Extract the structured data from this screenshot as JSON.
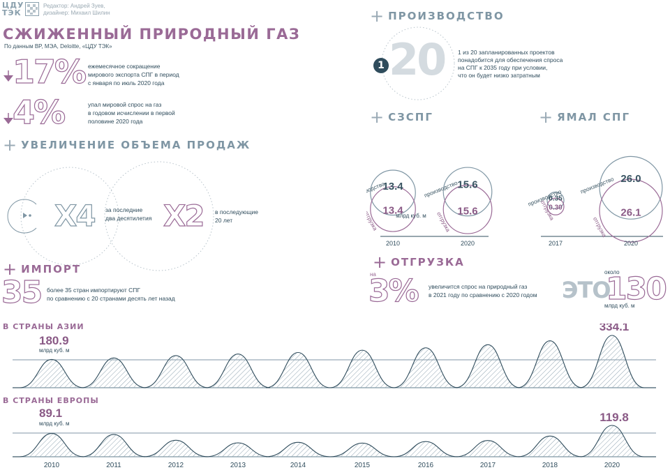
{
  "header": {
    "logo_line1": "ЦДУ",
    "logo_line2": "ТЭК",
    "credits_line1": "Редактор: Андрей Зуев,",
    "credits_line2": "дизайнер: Михаил Шилин",
    "title": "СЖИЖЕННЫЙ ПРИРОДНЫЙ ГАЗ",
    "source": "По данным BP, МЭА, Deloitte, «ЦДУ ТЭК»"
  },
  "facts": [
    {
      "value": "17%",
      "text": [
        "ежемесячное сокращение",
        "мирового экспорта СПГ в период",
        "с января по июль 2020 года"
      ]
    },
    {
      "value": "4%",
      "text": [
        "упал мировой спрос на газ",
        "в годовом исчислении в первой",
        "половине 2020 года"
      ]
    }
  ],
  "sales": {
    "heading": "УВЕЛИЧЕНИЕ ОБЪЕМА ПРОДАЖ",
    "x4": "X4",
    "x4_text": [
      "за последние",
      "два десятилетия"
    ],
    "x2": "X2",
    "x2_text": [
      "в последующие",
      "20 лет"
    ]
  },
  "import": {
    "heading": "ИМПОРТ",
    "value": "35",
    "text": [
      "более 35 стран импортируют СПГ",
      "по сравнению с 20 странами десять лет назад"
    ]
  },
  "production": {
    "heading": "ПРОИЗВОДСТВО",
    "badge": "1",
    "value": "20",
    "text": [
      "1 из 20 запланированных проектов",
      "понадобится для обеспечения спроса",
      "на СПГ к 2035 году при условии,",
      "что он будет низко затратным"
    ]
  },
  "shipment": {
    "heading": "ОТГРУЗКА",
    "prefix": "на",
    "value": "3%",
    "text": [
      "увеличится спрос на природный газ",
      "в 2021 году по сравнению с 2020 годом"
    ],
    "eto": "ЭТО",
    "about": "около",
    "big": "130",
    "unit": "млрд куб. м"
  },
  "colors": {
    "purple": "#9a6a96",
    "gray": "#7f96a4",
    "dark": "#2f4c5c"
  },
  "chart_data": [
    {
      "type": "bubble",
      "title": "СЗСПГ",
      "label_production": "производство",
      "label_shipment": "отгрузка",
      "unit": "млрд куб. м",
      "categories": [
        "2010",
        "2020"
      ],
      "series": [
        {
          "name": "производство",
          "values": [
            13.4,
            15.6
          ]
        },
        {
          "name": "отгрузка",
          "values": [
            13.4,
            15.6
          ]
        }
      ]
    },
    {
      "type": "bubble",
      "title": "ЯМАЛ СПГ",
      "label_production": "производство",
      "label_shipment": "отгрузка",
      "categories": [
        "2017",
        "2020"
      ],
      "series": [
        {
          "name": "производство",
          "values": [
            0.35,
            26.0
          ]
        },
        {
          "name": "отгрузка",
          "values": [
            0.3,
            26.1
          ]
        }
      ]
    },
    {
      "type": "area",
      "title": "В СТРАНЫ АЗИИ",
      "unit": "млрд куб. м",
      "categories": [
        "2010",
        "2011",
        "2012",
        "2013",
        "2014",
        "2015",
        "2016",
        "2017",
        "2018",
        "2020"
      ],
      "values": [
        180.9,
        190,
        205,
        215,
        225,
        240,
        255,
        275,
        300,
        334.1
      ],
      "labeled": {
        "first": "180.9",
        "last": "334.1"
      }
    },
    {
      "type": "area",
      "title": "В СТРАНЫ ЕВРОПЫ",
      "unit": "млрд куб. м",
      "categories": [
        "2010",
        "2011",
        "2012",
        "2013",
        "2014",
        "2015",
        "2016",
        "2017",
        "2018",
        "2020"
      ],
      "values": [
        89.1,
        85,
        63,
        53,
        55,
        52,
        58,
        62,
        79,
        119.8
      ],
      "labeled": {
        "first": "89.1",
        "last": "119.8"
      }
    }
  ]
}
